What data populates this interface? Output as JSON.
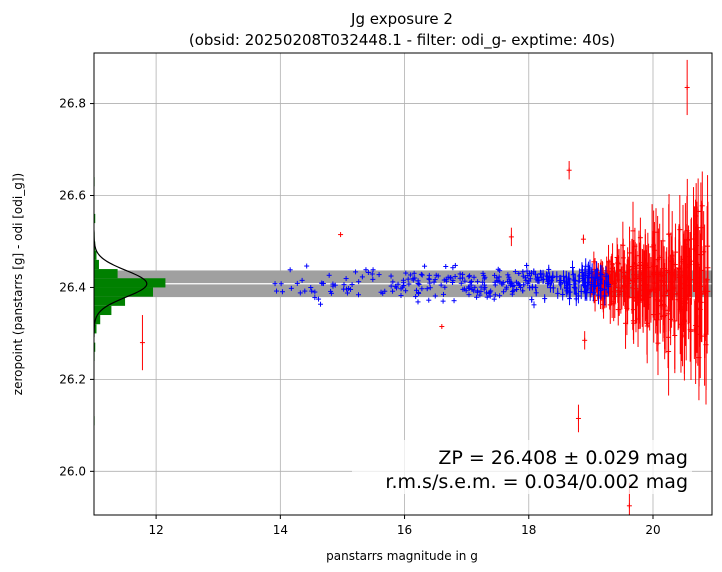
{
  "chart_data": {
    "type": "scatter",
    "title": "Jg exposure 2",
    "subtitle": "(obsid: 20250208T032448.1 - filter: odi_g- exptime: 40s)",
    "xlabel": "panstarrs magnitude in g",
    "ylabel": "zeropoint (panstarrs [g] - odi [odi_g])",
    "xlim": [
      11.0,
      20.95
    ],
    "ylim": [
      25.905,
      26.91
    ],
    "xticks": [
      12,
      14,
      16,
      18,
      20
    ],
    "yticks": [
      26.0,
      26.2,
      26.4,
      26.6,
      26.8
    ],
    "grid": true,
    "zeropoint": 26.408,
    "zp_band": [
      26.379,
      26.437
    ],
    "annotation_line1": "ZP = 26.408 ± 0.029 mag",
    "annotation_line2": "r.m.s/s.e.m. = 0.034/0.002 mag",
    "colors": {
      "good": "#0000ff",
      "rejected": "#ff0000",
      "hist": "#008000",
      "band": "#a0a0a0",
      "zp_line": "#ffffff",
      "gaussian": "#000000"
    },
    "histogram": [
      {
        "y0": 26.62,
        "y1": 26.64,
        "w": 0.01
      },
      {
        "y0": 26.54,
        "y1": 26.56,
        "w": 0.02
      },
      {
        "y0": 26.5,
        "y1": 26.52,
        "w": 0.01
      },
      {
        "y0": 26.48,
        "y1": 26.5,
        "w": 0.02
      },
      {
        "y0": 26.46,
        "y1": 26.48,
        "w": 0.04
      },
      {
        "y0": 26.44,
        "y1": 26.46,
        "w": 0.08
      },
      {
        "y0": 26.42,
        "y1": 26.44,
        "w": 0.38
      },
      {
        "y0": 26.4,
        "y1": 26.42,
        "w": 1.15
      },
      {
        "y0": 26.38,
        "y1": 26.4,
        "w": 0.95
      },
      {
        "y0": 26.36,
        "y1": 26.38,
        "w": 0.5
      },
      {
        "y0": 26.34,
        "y1": 26.36,
        "w": 0.28
      },
      {
        "y0": 26.32,
        "y1": 26.34,
        "w": 0.1
      },
      {
        "y0": 26.3,
        "y1": 26.32,
        "w": 0.04
      },
      {
        "y0": 26.26,
        "y1": 26.28,
        "w": 0.02
      },
      {
        "y0": 26.24,
        "y1": 26.26,
        "w": 0.01
      },
      {
        "y0": 26.1,
        "y1": 26.12,
        "w": 0.01
      }
    ],
    "gaussian": {
      "mean": 26.408,
      "sigma": 0.029,
      "peak": 0.85
    },
    "seed": 7
  }
}
